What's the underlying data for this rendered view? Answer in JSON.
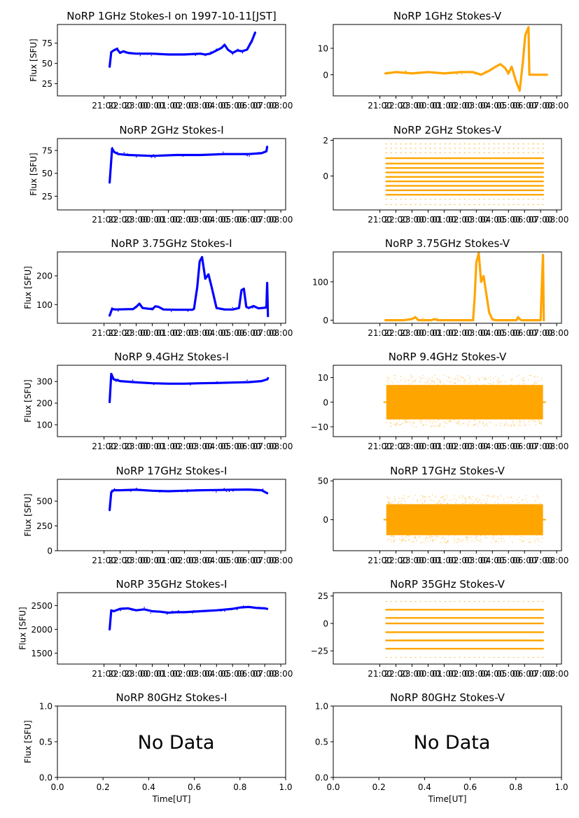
{
  "figure_title": "NoRP 1GHz Stokes-I on 1997-10-11[JST]",
  "x_axis_label": "Time[UT]",
  "colors": {
    "stokes_i": "#0000ff",
    "stokes_v": "#ffa500"
  },
  "chart_data": [
    {
      "type": "line",
      "id": "i1",
      "title": "NoRP 1GHz Stokes-I on 1997-10-11[JST]",
      "ylabel": "Flux [SFU]",
      "xlabel": "",
      "ylim": [
        10,
        98
      ],
      "yticks": [
        25,
        50,
        75
      ],
      "yticklabels": [
        "25",
        "50",
        "75"
      ],
      "xlim": [
        -2.9,
        11.3
      ],
      "xticks": [
        0,
        1,
        2,
        3,
        4,
        5,
        6,
        7,
        8,
        9,
        10,
        11
      ],
      "xticklabels": [
        "21:00",
        "22:00",
        "23:00",
        "00:00",
        "01:00",
        "02:00",
        "03:00",
        "04:00",
        "05:00",
        "06:00",
        "07:00",
        "08:00"
      ],
      "series": [
        {
          "name": "1GHz Stokes-I",
          "color": "#0000ff",
          "style": "line",
          "x": [
            0.35,
            0.45,
            0.6,
            0.8,
            1.0,
            1.2,
            1.5,
            2.0,
            3.0,
            4.0,
            5.0,
            6.0,
            6.3,
            6.6,
            7.0,
            7.3,
            7.5,
            7.7,
            8.0,
            8.3,
            8.6,
            8.9,
            9.2,
            9.4
          ],
          "y": [
            46,
            64,
            66,
            68,
            63,
            65,
            63,
            62,
            62,
            61,
            61,
            62,
            61,
            62,
            66,
            69,
            73,
            67,
            63,
            66,
            65,
            67,
            78,
            88
          ]
        }
      ]
    },
    {
      "type": "line",
      "id": "v1",
      "title": "NoRP 1GHz Stokes-V",
      "ylabel": "",
      "xlabel": "",
      "ylim": [
        -8,
        19
      ],
      "yticks": [
        0,
        10
      ],
      "yticklabels": [
        "0",
        "10"
      ],
      "xlim": [
        -2.9,
        11.3
      ],
      "xticks": [
        0,
        1,
        2,
        3,
        4,
        5,
        6,
        7,
        8,
        9,
        10,
        11
      ],
      "xticklabels": [
        "21:00",
        "22:00",
        "23:00",
        "00:00",
        "01:00",
        "02:00",
        "03:00",
        "04:00",
        "05:00",
        "06:00",
        "07:00",
        "08:00"
      ],
      "series": [
        {
          "name": "1GHz Stokes-V",
          "color": "#ffa500",
          "style": "line",
          "x": [
            0.35,
            1.0,
            2.0,
            3.0,
            4.0,
            5.0,
            5.8,
            6.3,
            6.8,
            7.2,
            7.5,
            7.8,
            8.0,
            8.2,
            8.5,
            8.7,
            8.9,
            9.05,
            9.25,
            9.3,
            10.4
          ],
          "y": [
            0.5,
            1,
            0.5,
            1,
            0.5,
            1,
            1,
            0,
            1.5,
            3,
            4,
            2.5,
            0.5,
            3,
            -3,
            -6,
            5,
            15,
            18,
            0,
            0
          ]
        }
      ]
    },
    {
      "type": "line",
      "id": "i2",
      "title": "NoRP 2GHz Stokes-I",
      "ylabel": "Flux [SFU]",
      "xlabel": "",
      "ylim": [
        10,
        88
      ],
      "yticks": [
        25,
        50,
        75
      ],
      "yticklabels": [
        "25",
        "50",
        "75"
      ],
      "xlim": [
        -2.9,
        11.3
      ],
      "xticks": [
        0,
        1,
        2,
        3,
        4,
        5,
        6,
        7,
        8,
        9,
        10,
        11
      ],
      "xticklabels": [
        "21:00",
        "22:00",
        "23:00",
        "00:00",
        "01:00",
        "02:00",
        "03:00",
        "04:00",
        "05:00",
        "06:00",
        "07:00",
        "08:00"
      ],
      "series": [
        {
          "name": "2GHz Stokes-I",
          "color": "#0000ff",
          "style": "line",
          "x": [
            0.35,
            0.5,
            0.65,
            0.9,
            1.5,
            3.0,
            4.5,
            6.0,
            7.5,
            9.0,
            9.8,
            10.1,
            10.15
          ],
          "y": [
            40,
            77,
            73,
            71,
            70,
            69,
            70,
            70,
            71,
            71,
            72,
            74,
            79
          ]
        }
      ]
    },
    {
      "type": "scatter",
      "id": "v2",
      "title": "NoRP 2GHz Stokes-V",
      "ylabel": "",
      "xlabel": "",
      "ylim": [
        -1.9,
        2.1
      ],
      "yticks": [
        0,
        2
      ],
      "yticklabels": [
        "0",
        "2"
      ],
      "xlim": [
        -2.9,
        11.3
      ],
      "xticks": [
        0,
        1,
        2,
        3,
        4,
        5,
        6,
        7,
        8,
        9,
        10,
        11
      ],
      "xticklabels": [
        "21:00",
        "22:00",
        "23:00",
        "00:00",
        "01:00",
        "02:00",
        "03:00",
        "04:00",
        "05:00",
        "06:00",
        "07:00",
        "08:00"
      ],
      "series": [
        {
          "name": "2GHz Stokes-V",
          "color": "#ffa500",
          "style": "levels",
          "x_range": [
            0.35,
            10.2
          ],
          "levels": [
            -1.05,
            -0.8,
            -0.55,
            -0.3,
            -0.05,
            0.2,
            0.45,
            0.7,
            1.0
          ],
          "sparse_levels": [
            -1.6,
            -1.3,
            1.3,
            1.55,
            1.8
          ]
        }
      ]
    },
    {
      "type": "line",
      "id": "i3",
      "title": "NoRP 3.75GHz Stokes-I",
      "ylabel": "Flux [SFU]",
      "xlabel": "",
      "ylim": [
        35,
        283
      ],
      "yticks": [
        100,
        200
      ],
      "yticklabels": [
        "100",
        "200"
      ],
      "xlim": [
        -2.9,
        11.3
      ],
      "xticks": [
        0,
        1,
        2,
        3,
        4,
        5,
        6,
        7,
        8,
        9,
        10,
        11
      ],
      "xticklabels": [
        "21:00",
        "22:00",
        "23:00",
        "00:00",
        "01:00",
        "02:00",
        "03:00",
        "04:00",
        "05:00",
        "06:00",
        "07:00",
        "08:00"
      ],
      "series": [
        {
          "name": "3.75GHz Stokes-I",
          "color": "#0000ff",
          "style": "line",
          "x": [
            0.35,
            0.5,
            0.7,
            1.5,
            1.8,
            2.0,
            2.2,
            2.4,
            3.0,
            3.2,
            3.4,
            3.7,
            4.5,
            5.5,
            5.6,
            5.8,
            5.95,
            6.1,
            6.3,
            6.5,
            6.7,
            7.0,
            7.5,
            8.0,
            8.4,
            8.55,
            8.7,
            8.85,
            9.0,
            9.3,
            9.6,
            10.0,
            10.1,
            10.15,
            10.2
          ],
          "y": [
            62,
            85,
            83,
            84,
            84,
            92,
            103,
            88,
            84,
            94,
            92,
            83,
            82,
            82,
            85,
            160,
            250,
            265,
            190,
            205,
            160,
            88,
            83,
            83,
            88,
            150,
            155,
            92,
            88,
            95,
            87,
            89,
            90,
            175,
            60
          ]
        }
      ]
    },
    {
      "type": "line",
      "id": "v3",
      "title": "NoRP 3.75GHz Stokes-V",
      "ylabel": "",
      "xlabel": "",
      "ylim": [
        -8,
        178
      ],
      "yticks": [
        0,
        100
      ],
      "yticklabels": [
        "0",
        "100"
      ],
      "xlim": [
        -2.9,
        11.3
      ],
      "xticks": [
        0,
        1,
        2,
        3,
        4,
        5,
        6,
        7,
        8,
        9,
        10,
        11
      ],
      "xticklabels": [
        "21:00",
        "22:00",
        "23:00",
        "00:00",
        "01:00",
        "02:00",
        "03:00",
        "04:00",
        "05:00",
        "06:00",
        "07:00",
        "08:00"
      ],
      "series": [
        {
          "name": "3.75GHz Stokes-V",
          "color": "#ffa500",
          "style": "line",
          "x": [
            0.35,
            1.5,
            2.0,
            2.2,
            2.4,
            3.2,
            3.4,
            3.6,
            5.8,
            5.9,
            6.0,
            6.15,
            6.3,
            6.45,
            6.6,
            6.8,
            7.0,
            7.2,
            8.5,
            8.6,
            8.7,
            8.8,
            10.0,
            10.1,
            10.15,
            10.2
          ],
          "y": [
            0,
            0,
            3,
            8,
            0,
            0,
            3,
            0,
            0,
            60,
            150,
            175,
            100,
            115,
            75,
            20,
            2,
            0,
            0,
            8,
            3,
            0,
            0,
            120,
            170,
            0
          ]
        }
      ]
    },
    {
      "type": "line",
      "id": "i4",
      "title": "NoRP 9.4GHz Stokes-I",
      "ylabel": "Flux [SFU]",
      "xlabel": "",
      "ylim": [
        45,
        375
      ],
      "yticks": [
        100,
        200,
        300
      ],
      "yticklabels": [
        "100",
        "200",
        "300"
      ],
      "xlim": [
        -2.9,
        11.3
      ],
      "xticks": [
        0,
        1,
        2,
        3,
        4,
        5,
        6,
        7,
        8,
        9,
        10,
        11
      ],
      "xticklabels": [
        "21:00",
        "22:00",
        "23:00",
        "00:00",
        "01:00",
        "02:00",
        "03:00",
        "04:00",
        "05:00",
        "06:00",
        "07:00",
        "08:00"
      ],
      "series": [
        {
          "name": "9.4GHz Stokes-I",
          "color": "#0000ff",
          "style": "line",
          "x": [
            0.35,
            0.45,
            0.6,
            1.0,
            2.0,
            3.0,
            4.0,
            5.0,
            6.0,
            7.0,
            8.0,
            9.0,
            9.8,
            10.15,
            10.2
          ],
          "y": [
            205,
            335,
            310,
            302,
            296,
            292,
            290,
            290,
            292,
            293,
            295,
            297,
            302,
            310,
            315
          ]
        }
      ]
    },
    {
      "type": "scatter",
      "id": "v4",
      "title": "NoRP 9.4GHz Stokes-V",
      "ylabel": "",
      "xlabel": "",
      "ylim": [
        -14,
        15
      ],
      "yticks": [
        -10,
        0,
        10
      ],
      "yticklabels": [
        "−10",
        "0",
        "10"
      ],
      "xlim": [
        -2.9,
        11.3
      ],
      "xticks": [
        0,
        1,
        2,
        3,
        4,
        5,
        6,
        7,
        8,
        9,
        10,
        11
      ],
      "xticklabels": [
        "21:00",
        "22:00",
        "23:00",
        "00:00",
        "01:00",
        "02:00",
        "03:00",
        "04:00",
        "05:00",
        "06:00",
        "07:00",
        "08:00"
      ],
      "series": [
        {
          "name": "9.4GHz Stokes-V",
          "color": "#ffa500",
          "style": "band",
          "x_range": [
            0.4,
            10.15
          ],
          "core": [
            -7,
            7
          ],
          "spread": [
            -10,
            11
          ]
        }
      ]
    },
    {
      "type": "line",
      "id": "i5",
      "title": "NoRP 17GHz Stokes-I",
      "ylabel": "Flux [SFU]",
      "xlabel": "",
      "ylim": [
        0,
        720
      ],
      "yticks": [
        0,
        250,
        500
      ],
      "yticklabels": [
        "0",
        "250",
        "500"
      ],
      "xlim": [
        -2.9,
        11.3
      ],
      "xticks": [
        0,
        1,
        2,
        3,
        4,
        5,
        6,
        7,
        8,
        9,
        10,
        11
      ],
      "xticklabels": [
        "21:00",
        "22:00",
        "23:00",
        "00:00",
        "01:00",
        "02:00",
        "03:00",
        "04:00",
        "05:00",
        "06:00",
        "07:00",
        "08:00"
      ],
      "series": [
        {
          "name": "17GHz Stokes-I",
          "color": "#0000ff",
          "style": "line",
          "x": [
            0.35,
            0.45,
            0.6,
            1.0,
            2.0,
            3.0,
            4.0,
            5.0,
            6.0,
            7.0,
            8.0,
            9.0,
            9.8,
            10.15
          ],
          "y": [
            410,
            590,
            610,
            610,
            615,
            605,
            600,
            605,
            610,
            612,
            615,
            617,
            610,
            580
          ]
        }
      ]
    },
    {
      "type": "scatter",
      "id": "v5",
      "title": "NoRP 17GHz Stokes-V",
      "ylabel": "",
      "xlabel": "",
      "ylim": [
        -40,
        52
      ],
      "yticks": [
        0,
        50
      ],
      "yticklabels": [
        "0",
        "50"
      ],
      "xlim": [
        -2.9,
        11.3
      ],
      "xticks": [
        0,
        1,
        2,
        3,
        4,
        5,
        6,
        7,
        8,
        9,
        10,
        11
      ],
      "xticklabels": [
        "21:00",
        "22:00",
        "23:00",
        "00:00",
        "01:00",
        "02:00",
        "03:00",
        "04:00",
        "05:00",
        "06:00",
        "07:00",
        "08:00"
      ],
      "series": [
        {
          "name": "17GHz Stokes-V",
          "color": "#ffa500",
          "style": "band",
          "x_range": [
            0.4,
            10.15
          ],
          "core": [
            -20,
            20
          ],
          "spread": [
            -30,
            32
          ]
        }
      ]
    },
    {
      "type": "line",
      "id": "i6",
      "title": "NoRP 35GHz Stokes-I",
      "ylabel": "Flux [SFU]",
      "xlabel": "",
      "ylim": [
        1270,
        2770
      ],
      "yticks": [
        1500,
        2000,
        2500
      ],
      "yticklabels": [
        "1500",
        "2000",
        "2500"
      ],
      "xlim": [
        -2.9,
        11.3
      ],
      "xticks": [
        0,
        1,
        2,
        3,
        4,
        5,
        6,
        7,
        8,
        9,
        10,
        11
      ],
      "xticklabels": [
        "21:00",
        "22:00",
        "23:00",
        "00:00",
        "01:00",
        "02:00",
        "03:00",
        "04:00",
        "05:00",
        "06:00",
        "07:00",
        "08:00"
      ],
      "series": [
        {
          "name": "35GHz Stokes-I",
          "color": "#0000ff",
          "style": "line",
          "x": [
            0.35,
            0.45,
            0.6,
            1.0,
            1.5,
            2.0,
            2.5,
            3.0,
            3.5,
            4.0,
            4.5,
            5.0,
            6.0,
            7.0,
            8.0,
            8.5,
            9.0,
            9.5,
            10.0,
            10.15
          ],
          "y": [
            2000,
            2400,
            2380,
            2430,
            2440,
            2400,
            2420,
            2380,
            2370,
            2350,
            2360,
            2360,
            2380,
            2400,
            2430,
            2460,
            2470,
            2450,
            2440,
            2430
          ]
        }
      ]
    },
    {
      "type": "scatter",
      "id": "v6",
      "title": "NoRP 35GHz Stokes-V",
      "ylabel": "",
      "xlabel": "",
      "ylim": [
        -37,
        28
      ],
      "yticks": [
        -25,
        0,
        25
      ],
      "yticklabels": [
        "−25",
        "0",
        "25"
      ],
      "xlim": [
        -2.9,
        11.3
      ],
      "xticks": [
        0,
        1,
        2,
        3,
        4,
        5,
        6,
        7,
        8,
        9,
        10,
        11
      ],
      "xticklabels": [
        "21:00",
        "22:00",
        "23:00",
        "00:00",
        "01:00",
        "02:00",
        "03:00",
        "04:00",
        "05:00",
        "06:00",
        "07:00",
        "08:00"
      ],
      "series": [
        {
          "name": "35GHz Stokes-V",
          "color": "#ffa500",
          "style": "levels",
          "x_range": [
            0.35,
            10.2
          ],
          "levels": [
            -23,
            -15.5,
            -8,
            0,
            5,
            12.5
          ],
          "sparse_levels": [
            -31,
            20
          ]
        }
      ]
    },
    {
      "type": "empty",
      "id": "i7",
      "title": "NoRP 80GHz Stokes-I",
      "ylabel": "Flux [SFU]",
      "xlabel": "Time[UT]",
      "ylim": [
        0,
        1
      ],
      "yticks": [
        0,
        0.5,
        1
      ],
      "yticklabels": [
        "0.0",
        "0.5",
        "1.0"
      ],
      "xlim": [
        0,
        1
      ],
      "xticks": [
        0,
        0.2,
        0.4,
        0.6,
        0.8,
        1.0
      ],
      "xticklabels": [
        "0.0",
        "0.2",
        "0.4",
        "0.6",
        "0.8",
        "1.0"
      ],
      "annotation": "No Data",
      "series": []
    },
    {
      "type": "empty",
      "id": "v7",
      "title": "NoRP 80GHz Stokes-V",
      "ylabel": "",
      "xlabel": "Time[UT]",
      "ylim": [
        0,
        1
      ],
      "yticks": [
        0,
        0.5,
        1
      ],
      "yticklabels": [
        "0.0",
        "0.5",
        "1.0"
      ],
      "xlim": [
        0,
        1
      ],
      "xticks": [
        0,
        0.2,
        0.4,
        0.6,
        0.8,
        1.0
      ],
      "xticklabels": [
        "0.0",
        "0.2",
        "0.4",
        "0.6",
        "0.8",
        "1.0"
      ],
      "annotation": "No Data",
      "series": []
    }
  ]
}
